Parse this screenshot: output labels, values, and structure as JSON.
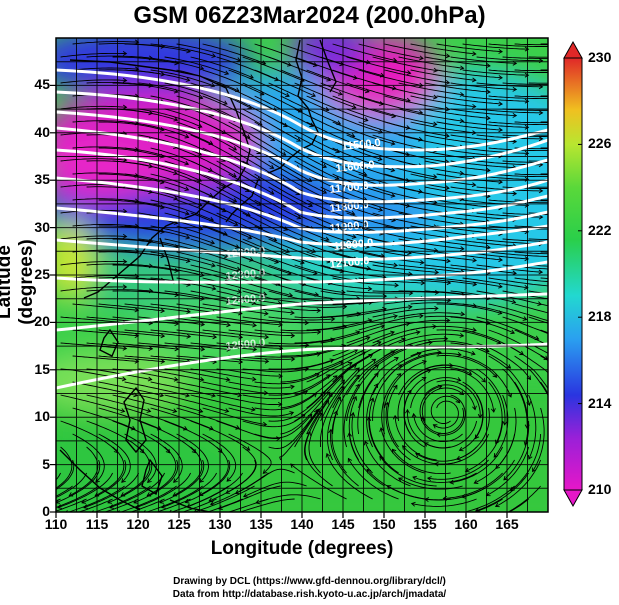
{
  "title": "GSM 06Z23Mar2024 (200.0hPa)",
  "xlabel": "Longitude (degrees)",
  "ylabel": "Latitude  (degrees)",
  "credits": {
    "line1": "Drawing by DCL (https://www.gfd-dennou.org/library/dcl/)",
    "line2": "Data from http://database.rish.kyoto-u.ac.jp/arch/jmadata/"
  },
  "chart_data": {
    "type": "heatmap",
    "x_range": [
      110,
      170
    ],
    "y_range": [
      0,
      50
    ],
    "x_ticks": [
      "110",
      "115",
      "120",
      "125",
      "130",
      "135",
      "140",
      "145",
      "150",
      "155",
      "160",
      "165"
    ],
    "y_ticks": [
      "0",
      "5",
      "10",
      "15",
      "20",
      "25",
      "30",
      "35",
      "40",
      "45"
    ],
    "colorbar": {
      "min": 210,
      "max": 230,
      "ticks": [
        "230",
        "226",
        "222",
        "218",
        "214",
        "210"
      ]
    },
    "contour_labels": [
      "11500.0",
      "11600.0",
      "11700.0",
      "11800.0",
      "11900.0",
      "12000.0",
      "12100.0",
      "12200.0",
      "12300.0",
      "12400.0",
      "12500.0"
    ],
    "colors": {
      "magenta": "#e61ec8",
      "blue": "#2a3ae0",
      "cyan": "#26c8e6",
      "green": "#3ccf3c",
      "lightgreen": "#7ae05a",
      "yellow": "#d8e630",
      "red": "#e0342a",
      "contour": "#ffffff"
    }
  }
}
